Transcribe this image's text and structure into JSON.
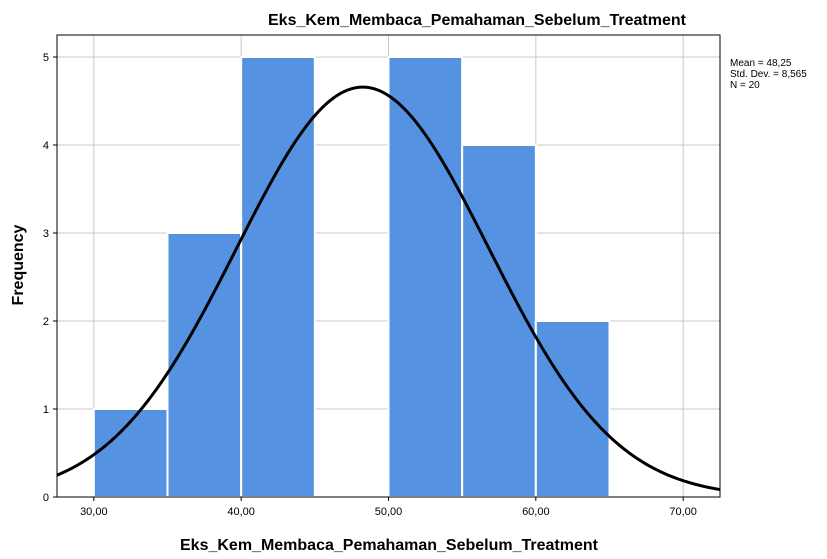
{
  "chart_data": {
    "type": "bar",
    "subtype": "histogram",
    "title": "Eks_Kem_Membaca_Pemahaman_Sebelum_Treatment",
    "xlabel": "Eks_Kem_Membaca_Pemahaman_Sebelum_Treatment",
    "ylabel": "Frequency",
    "xlim": [
      27.5,
      72.5
    ],
    "ylim": [
      0,
      5.25
    ],
    "x_ticks": [
      30,
      40,
      50,
      60,
      70
    ],
    "x_tick_labels": [
      "30,00",
      "40,00",
      "50,00",
      "60,00",
      "70,00"
    ],
    "y_ticks": [
      0,
      1,
      2,
      3,
      4,
      5
    ],
    "y_tick_labels": [
      "0",
      "1",
      "2",
      "3",
      "4",
      "5"
    ],
    "grid": true,
    "bins": [
      {
        "x0": 30,
        "x1": 35,
        "count": 1
      },
      {
        "x0": 35,
        "x1": 40,
        "count": 3
      },
      {
        "x0": 40,
        "x1": 45,
        "count": 5
      },
      {
        "x0": 45,
        "x1": 50,
        "count": 0
      },
      {
        "x0": 50,
        "x1": 55,
        "count": 5
      },
      {
        "x0": 55,
        "x1": 60,
        "count": 4
      },
      {
        "x0": 60,
        "x1": 65,
        "count": 2
      }
    ],
    "normal_curve": {
      "mean": 48.25,
      "sd": 8.565,
      "n": 20,
      "bin_width": 5
    },
    "stats_lines": [
      "Mean = 48,25",
      "Std. Dev. = 8,565",
      "N = 20"
    ],
    "colors": {
      "bar": "#5592e2",
      "bar_edge": "#ffffff",
      "curve": "#000000",
      "grid": "#c8c8c8"
    }
  }
}
